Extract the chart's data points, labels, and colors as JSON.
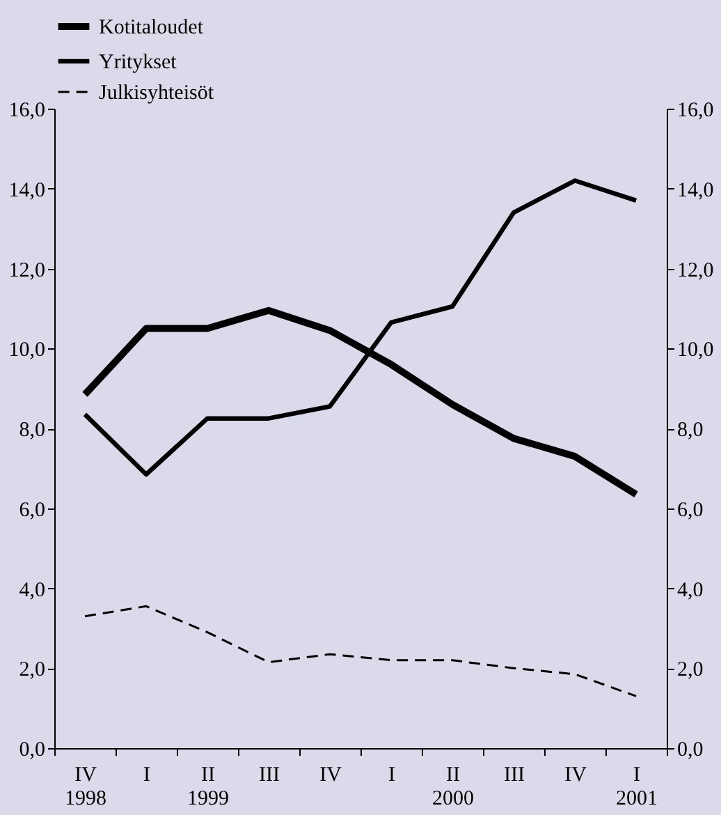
{
  "chart_data": {
    "type": "line",
    "categories": [
      "IV\n1998",
      "I",
      "II\n1999",
      "III",
      "IV",
      "I",
      "II\n2000",
      "III",
      "IV",
      "I\n2001"
    ],
    "series": [
      {
        "name": "Kotitaloudet",
        "color": "#000000",
        "line_style": "solid",
        "values": [
          8.85,
          10.5,
          10.5,
          10.95,
          10.45,
          9.6,
          8.6,
          7.75,
          7.3,
          6.35
        ]
      },
      {
        "name": "Yritykset",
        "color": "#000000",
        "line_style": "solid",
        "values": [
          8.35,
          6.85,
          8.25,
          8.25,
          8.55,
          10.65,
          11.05,
          13.4,
          14.2,
          13.7
        ]
      },
      {
        "name": "Julkisyhteisöt",
        "color": "#000000",
        "line_style": "dashed",
        "values": [
          3.3,
          3.55,
          2.9,
          2.15,
          2.35,
          2.2,
          2.2,
          2.0,
          1.85,
          1.3
        ]
      }
    ],
    "ylim": [
      0,
      16
    ],
    "yticks": [
      {
        "value": 0,
        "label": "0,0"
      },
      {
        "value": 2,
        "label": "2,0"
      },
      {
        "value": 4,
        "label": "4,0"
      },
      {
        "value": 6,
        "label": "6,0"
      },
      {
        "value": 8,
        "label": "8,0"
      },
      {
        "value": 10,
        "label": "10,0"
      },
      {
        "value": 12,
        "label": "12,0"
      },
      {
        "value": 14,
        "label": "14,0"
      },
      {
        "value": 16,
        "label": "16,0"
      }
    ],
    "y2lim": [
      0,
      16
    ],
    "y2ticks": [
      {
        "value": 0,
        "label": "0,0"
      },
      {
        "value": 2,
        "label": "2,0"
      },
      {
        "value": 4,
        "label": "4,0"
      },
      {
        "value": 6,
        "label": "6,0"
      },
      {
        "value": 8,
        "label": "8,0"
      },
      {
        "value": 10,
        "label": "10,0"
      },
      {
        "value": 12,
        "label": "12,0"
      },
      {
        "value": 14,
        "label": "14,0"
      },
      {
        "value": 16,
        "label": "16,0"
      }
    ],
    "grid": false,
    "legend": "top left"
  }
}
